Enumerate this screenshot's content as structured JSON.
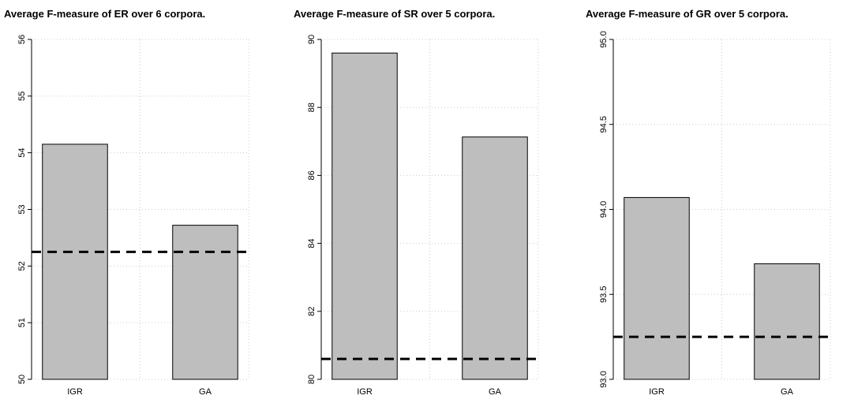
{
  "chart_data": [
    {
      "type": "bar",
      "title": "Average F-measure of ER over 6 corpora.",
      "categories": [
        "IGR",
        "GA"
      ],
      "values": [
        54.15,
        52.72
      ],
      "color": "#bebebe",
      "ylim": [
        50,
        56
      ],
      "yticks": [
        50,
        51,
        52,
        53,
        54,
        55,
        56
      ],
      "grid": true,
      "reference_line": 52.25
    },
    {
      "type": "bar",
      "title": "Average F-measure of SR over 5 corpora.",
      "categories": [
        "IGR",
        "GA"
      ],
      "values": [
        89.6,
        87.13
      ],
      "color": "#bebebe",
      "ylim": [
        80,
        90
      ],
      "yticks": [
        80,
        82,
        84,
        86,
        88,
        90
      ],
      "grid": true,
      "reference_line": 80.6
    },
    {
      "type": "bar",
      "title": "Average F-measure of GR over 5 corpora.",
      "categories": [
        "IGR",
        "GA"
      ],
      "values": [
        94.07,
        93.68
      ],
      "color": "#bebebe",
      "ylim": [
        93,
        95
      ],
      "yticks": [
        {
          "value": 93,
          "label": "93.0"
        },
        {
          "value": 93.5,
          "label": "93.5"
        },
        {
          "value": 94,
          "label": "94.0"
        },
        {
          "value": 94.5,
          "label": "94.5"
        },
        {
          "value": 95,
          "label": "95.0"
        }
      ],
      "grid": true,
      "reference_line": 93.25
    }
  ]
}
